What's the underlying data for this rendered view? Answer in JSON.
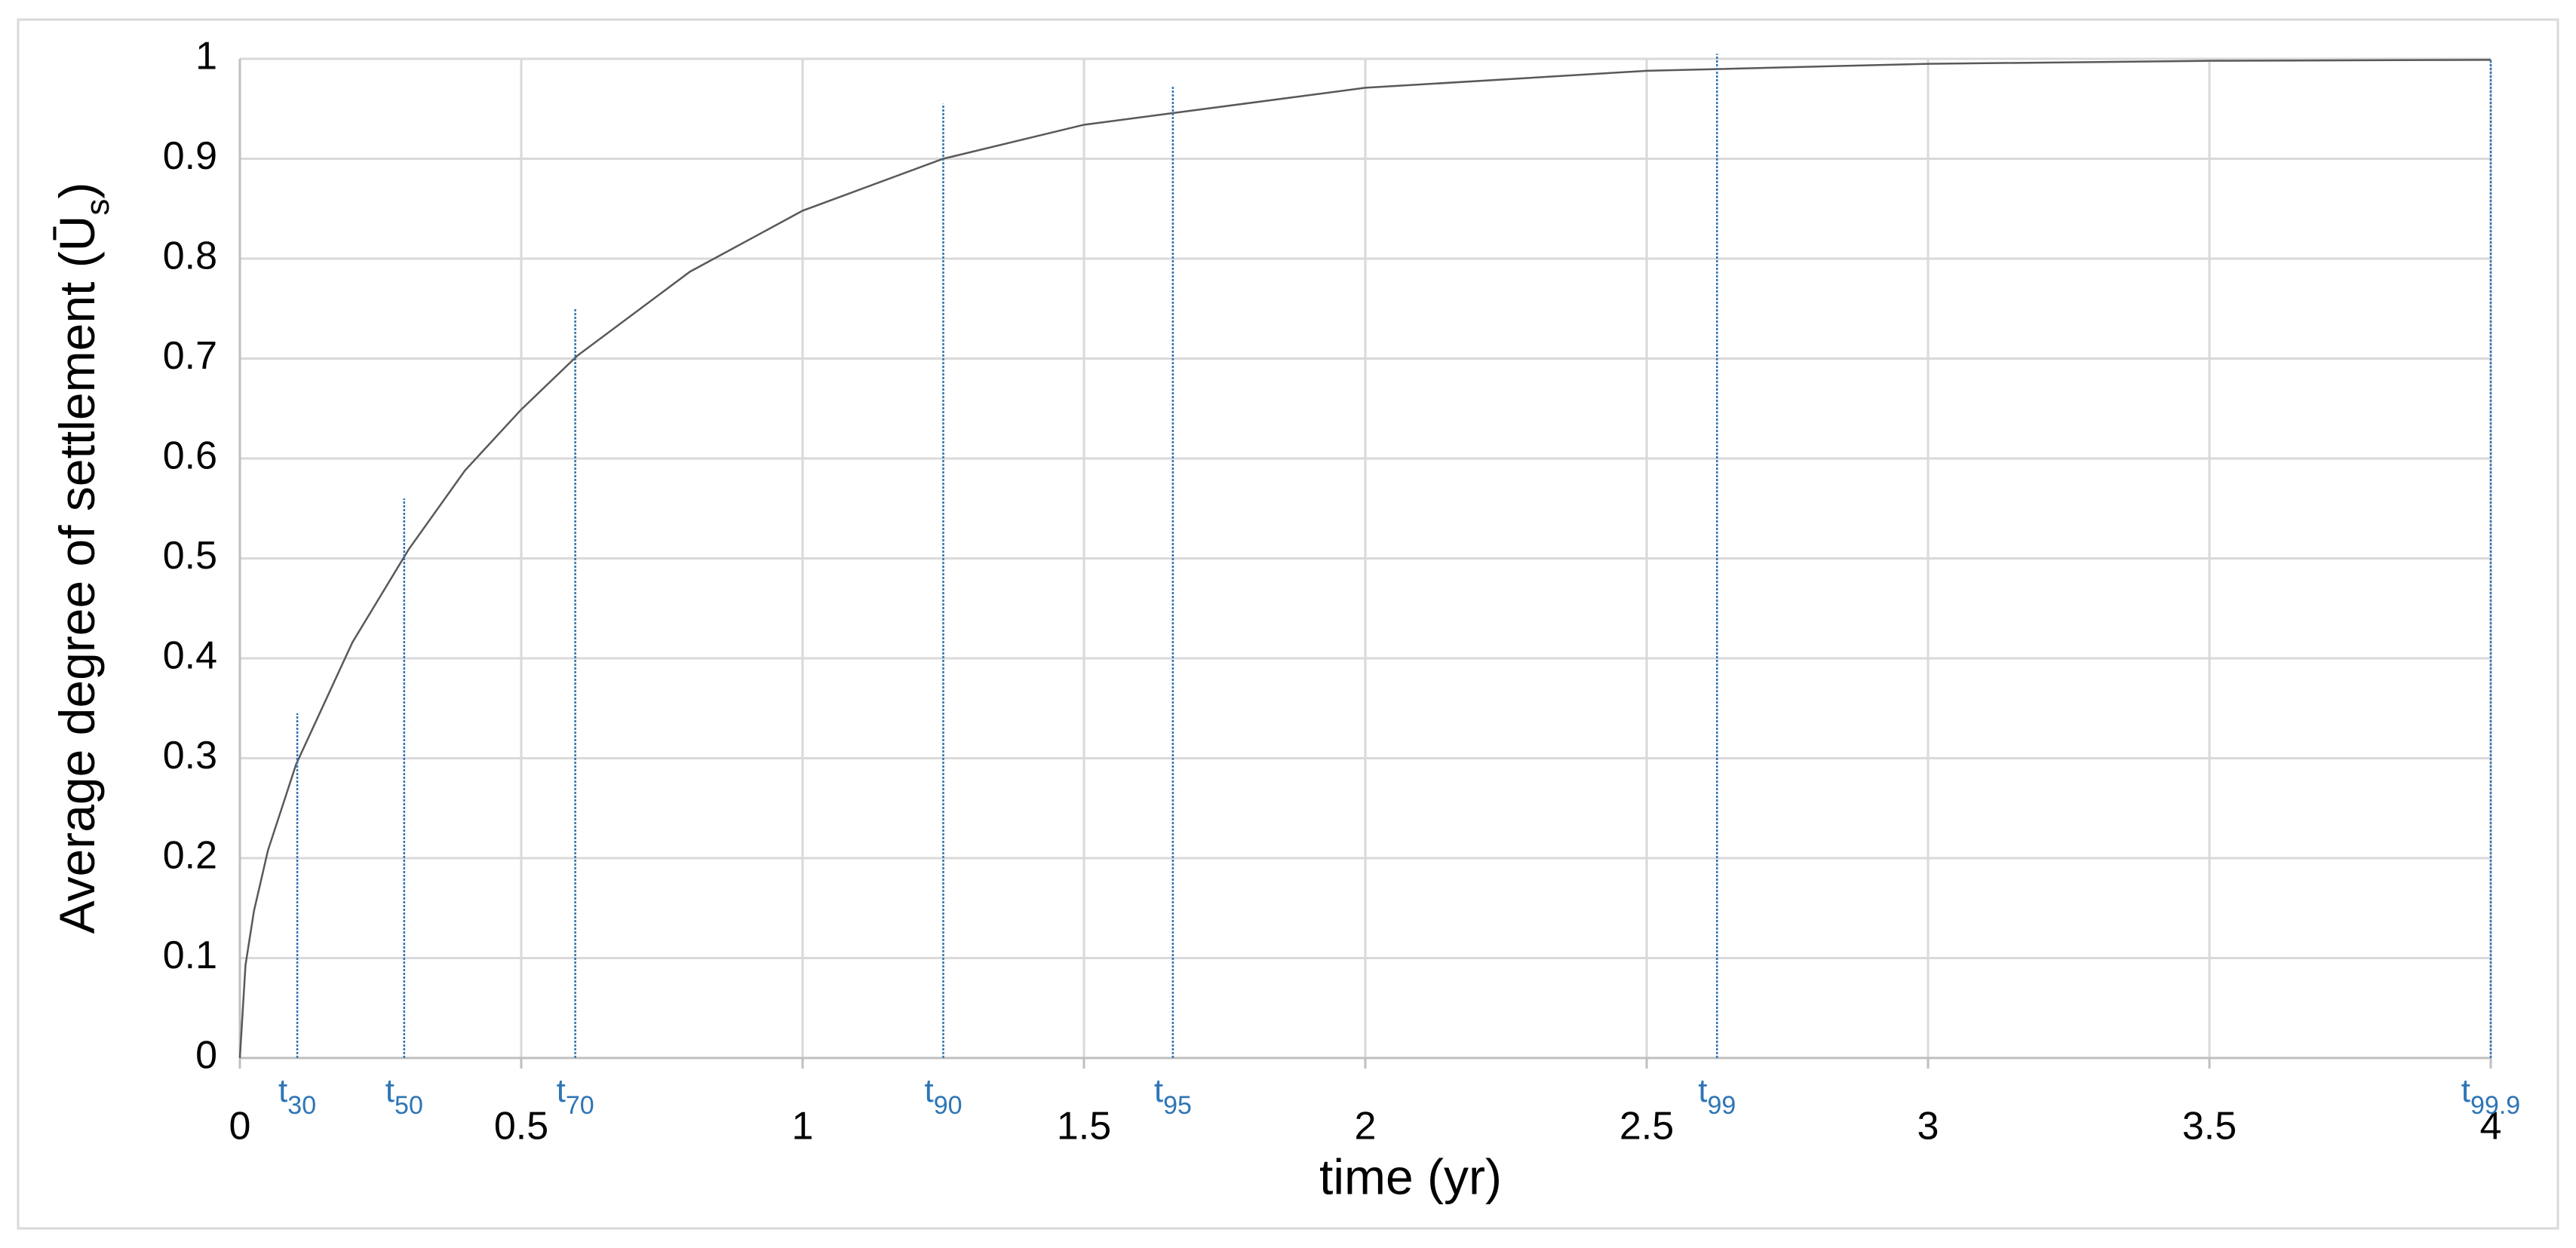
{
  "chart_data": {
    "type": "line",
    "xlabel": "time (yr)",
    "ylabel": [
      "Average degree of settlement (Ū",
      "s",
      ")"
    ],
    "x": [
      0,
      0.01,
      0.025,
      0.05,
      0.1,
      0.2,
      0.3,
      0.4,
      0.5,
      0.6,
      0.8,
      1.0,
      1.25,
      1.5,
      2.0,
      2.5,
      3.0,
      3.5,
      4.0
    ],
    "series": [
      {
        "color": "#595959",
        "values": [
          0,
          0.093,
          0.147,
          0.208,
          0.294,
          0.416,
          0.509,
          0.588,
          0.649,
          0.703,
          0.787,
          0.848,
          0.9,
          0.934,
          0.971,
          0.988,
          0.995,
          0.998,
          0.999
        ]
      }
    ],
    "markers": [
      {
        "x": 0.102,
        "top": 0.345,
        "base": "t",
        "sub": "30"
      },
      {
        "x": 0.292,
        "top": 0.56,
        "base": "t",
        "sub": "50"
      },
      {
        "x": 0.596,
        "top": 0.75,
        "base": "t",
        "sub": "70"
      },
      {
        "x": 1.25,
        "top": 0.955,
        "base": "t",
        "sub": "90"
      },
      {
        "x": 1.658,
        "top": 0.972,
        "base": "t",
        "sub": "95"
      },
      {
        "x": 2.625,
        "top": 1.005,
        "base": "t",
        "sub": "99"
      },
      {
        "x": 4.0,
        "top": 1.0,
        "base": "t",
        "sub": "99.9"
      }
    ],
    "marker_color": "#2e75b6",
    "xlim": [
      0,
      4
    ],
    "xticks": [
      0,
      0.5,
      1,
      1.5,
      2,
      2.5,
      3,
      3.5,
      4
    ],
    "ylim": [
      0,
      1
    ],
    "yticks": [
      0,
      0.1,
      0.2,
      0.3,
      0.4,
      0.5,
      0.6,
      0.7,
      0.8,
      0.9,
      1
    ],
    "grid": true
  }
}
